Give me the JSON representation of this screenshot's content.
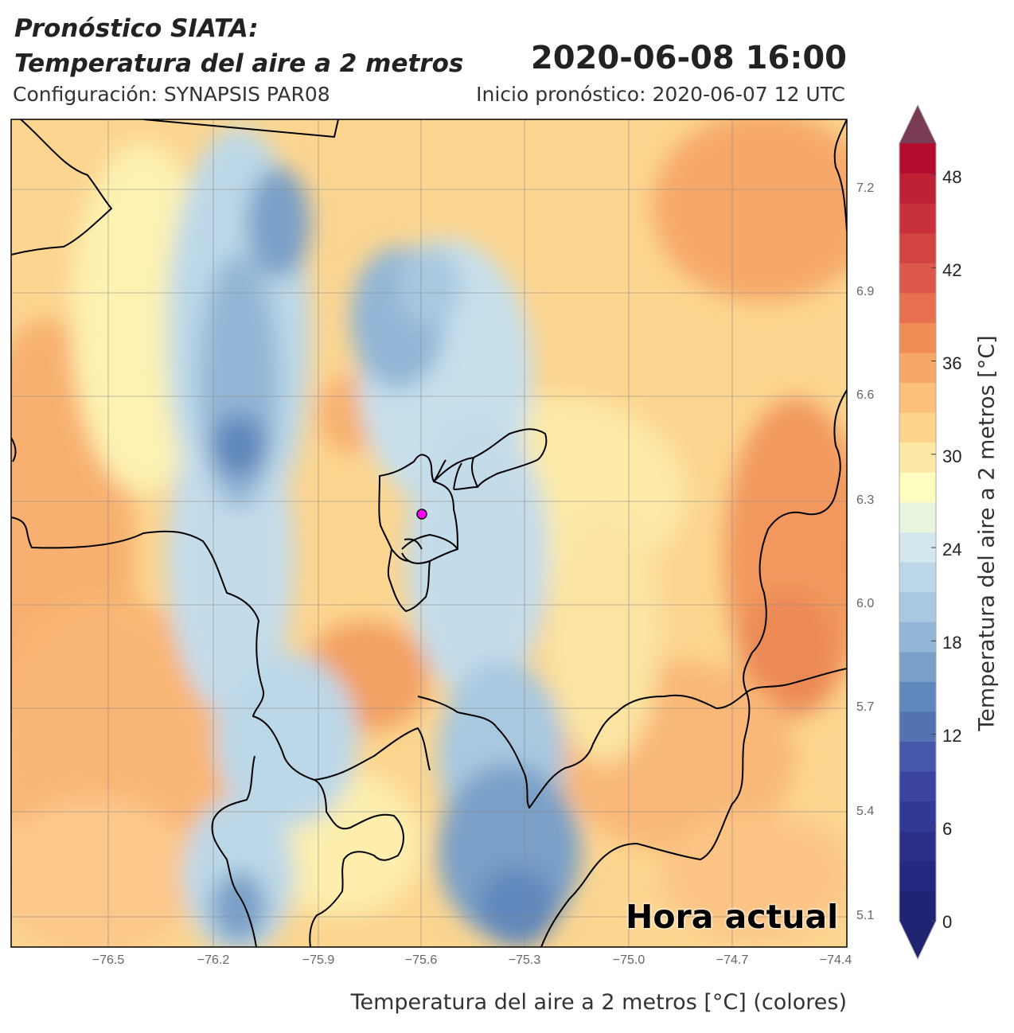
{
  "header": {
    "title_line1": "Pronóstico SIATA:",
    "title_line2": "Temperatura del aire a 2 metros",
    "datetime": "2020-06-08 16:00",
    "configuration": "Configuración: SYNAPSIS PAR08",
    "forecast_start": "Inicio pronóstico: 2020-06-07 12 UTC"
  },
  "map": {
    "x_ticks": [
      "−76.5",
      "−76.2",
      "−75.9",
      "−75.6",
      "−75.3",
      "−75.0",
      "−74.7",
      "−74.4"
    ],
    "y_ticks": [
      "7.2",
      "6.9",
      "6.6",
      "6.3",
      "6.0",
      "5.7",
      "5.4",
      "5.1"
    ],
    "x_range": [
      -76.8,
      -74.4
    ],
    "y_range": [
      5.02,
      7.42
    ],
    "grid": true,
    "badge": "Hora actual",
    "x_axis_label": "Temperatura del aire a 2 metros [°C] (colores)",
    "marker_color": "#ff00ff"
  },
  "colorbar": {
    "label": "Temperatura del aire a 2 metros [°C]",
    "ticks": [
      "0",
      "6",
      "12",
      "18",
      "24",
      "30",
      "36",
      "42",
      "48"
    ],
    "range": [
      0,
      50
    ],
    "extend": "both",
    "colors": [
      "#1f2472",
      "#24297f",
      "#2a2f8a",
      "#313996",
      "#3a44a0",
      "#4656a8",
      "#5272b2",
      "#6088bc",
      "#7aa0c8",
      "#92b6d6",
      "#a8c8e0",
      "#bcd8e8",
      "#d2e8ee",
      "#e8f4dc",
      "#fdfdc0",
      "#fde8a6",
      "#fdd48e",
      "#fbc07a",
      "#f8a866",
      "#f18e58",
      "#e7714e",
      "#dc5848",
      "#d24442",
      "#c8303c",
      "#be2036",
      "#b20d2e"
    ],
    "over_color": "#7b3a55",
    "under_color": "#1f2472"
  }
}
